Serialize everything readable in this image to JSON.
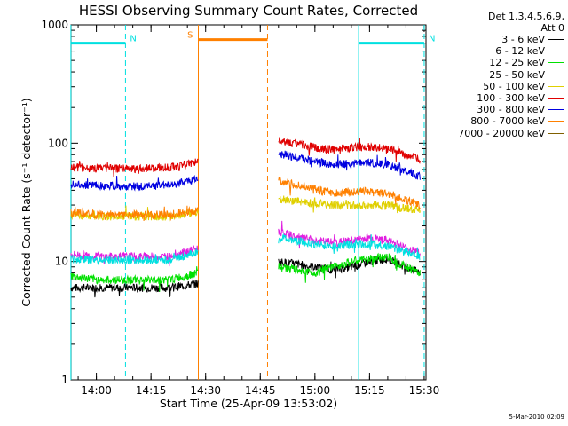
{
  "chart_data": {
    "type": "line",
    "title": "HESSI Observing Summary Count Rates, Corrected",
    "xlabel": "Start Time (25-Apr-09 13:53:02)",
    "ylabel": "Corrected Count Rate (s⁻¹ detector⁻¹)",
    "yscale": "log",
    "ylim": [
      1,
      1000
    ],
    "xlim": [
      "13:53:02",
      "15:30:30"
    ],
    "x_ticks": [
      "14:00",
      "14:15",
      "14:30",
      "14:45",
      "15:00",
      "15:15",
      "15:30"
    ],
    "y_ticks": [
      "1",
      "10",
      "100",
      "1000"
    ],
    "legend_header": [
      "Det 1,3,4,5,6,9,",
      "Att 0"
    ],
    "series": [
      {
        "name": "3 - 6 keV",
        "color": "#000000",
        "segments": [
          {
            "x": [
              "13:53",
              "14:00",
              "14:10",
              "14:20",
              "14:28"
            ],
            "y": [
              6,
              6,
              6,
              6,
              6.5
            ]
          },
          {
            "x": [
              "14:50",
              "14:55",
              "15:00",
              "15:05",
              "15:10",
              "15:15",
              "15:20",
              "15:25",
              "15:29"
            ],
            "y": [
              10,
              9.5,
              9,
              8.5,
              9,
              10,
              10.5,
              9,
              8
            ]
          }
        ]
      },
      {
        "name": "6 - 12 keV",
        "color": "#e020e0",
        "segments": [
          {
            "x": [
              "13:53",
              "14:00",
              "14:10",
              "14:20",
              "14:28"
            ],
            "y": [
              11.5,
              11,
              11,
              11,
              13
            ]
          },
          {
            "x": [
              "14:50",
              "14:55",
              "15:00",
              "15:05",
              "15:10",
              "15:15",
              "15:20",
              "15:25",
              "15:29"
            ],
            "y": [
              18,
              16,
              15,
              14.5,
              15,
              16,
              15,
              13,
              12
            ]
          }
        ]
      },
      {
        "name": "12 - 25 keV",
        "color": "#00e000",
        "segments": [
          {
            "x": [
              "13:53",
              "14:00",
              "14:10",
              "14:20",
              "14:28"
            ],
            "y": [
              7.5,
              7,
              7,
              7,
              8
            ]
          },
          {
            "x": [
              "14:50",
              "14:55",
              "15:00",
              "15:05",
              "15:10",
              "15:15",
              "15:20",
              "15:25",
              "15:29"
            ],
            "y": [
              9,
              8.5,
              8,
              9,
              10,
              10.5,
              11,
              9,
              8
            ]
          }
        ]
      },
      {
        "name": "25 - 50 keV",
        "color": "#00e0e0",
        "segments": [
          {
            "x": [
              "13:53",
              "14:00",
              "14:10",
              "14:20",
              "14:28"
            ],
            "y": [
              10.5,
              10.3,
              10.2,
              10.3,
              12
            ]
          },
          {
            "x": [
              "14:50",
              "14:55",
              "15:00",
              "15:05",
              "15:10",
              "15:15",
              "15:20",
              "15:25",
              "15:29"
            ],
            "y": [
              16,
              15,
              14,
              13.5,
              14,
              14,
              13.5,
              12,
              11
            ]
          }
        ]
      },
      {
        "name": "50 - 100 keV",
        "color": "#e0d000",
        "segments": [
          {
            "x": [
              "13:53",
              "14:00",
              "14:10",
              "14:20",
              "14:28"
            ],
            "y": [
              25,
              24,
              24,
              24,
              26
            ]
          },
          {
            "x": [
              "14:50",
              "14:55",
              "15:00",
              "15:05",
              "15:10",
              "15:15",
              "15:20",
              "15:25",
              "15:29"
            ],
            "y": [
              34,
              32,
              31,
              30,
              30,
              30,
              30,
              28,
              27
            ]
          }
        ]
      },
      {
        "name": "100 - 300 keV",
        "color": "#e00000",
        "segments": [
          {
            "x": [
              "13:53",
              "14:00",
              "14:10",
              "14:20",
              "14:28"
            ],
            "y": [
              63,
              61,
              61,
              62,
              70
            ]
          },
          {
            "x": [
              "14:50",
              "14:55",
              "15:00",
              "15:05",
              "15:10",
              "15:15",
              "15:20",
              "15:25",
              "15:29"
            ],
            "y": [
              105,
              98,
              92,
              88,
              92,
              93,
              90,
              80,
              72
            ]
          }
        ]
      },
      {
        "name": "300 - 800 keV",
        "color": "#0000e0",
        "segments": [
          {
            "x": [
              "13:53",
              "14:00",
              "14:10",
              "14:20",
              "14:28"
            ],
            "y": [
              45,
              44,
              43,
              44,
              50
            ]
          },
          {
            "x": [
              "14:50",
              "14:55",
              "15:00",
              "15:05",
              "15:10",
              "15:15",
              "15:20",
              "15:25",
              "15:29"
            ],
            "y": [
              82,
              76,
              70,
              66,
              68,
              68,
              66,
              58,
              52
            ]
          }
        ]
      },
      {
        "name": "800 - 7000 keV",
        "color": "#ff8000",
        "segments": [
          {
            "x": [
              "13:53",
              "14:00",
              "14:10",
              "14:20",
              "14:28"
            ],
            "y": [
              26,
              25,
              25,
              25,
              27
            ]
          },
          {
            "x": [
              "14:50",
              "14:55",
              "15:00",
              "15:05",
              "15:10",
              "15:15",
              "15:20",
              "15:25",
              "15:29"
            ],
            "y": [
              48,
              44,
              41,
              38,
              39,
              39,
              37,
              33,
              30
            ]
          }
        ]
      },
      {
        "name": "7000 - 20000 keV",
        "color": "#806000",
        "segments": []
      }
    ],
    "flags": {
      "night": {
        "letter": "N",
        "color": "#00e0e0",
        "intervals": [
          [
            "13:53",
            "14:08"
          ],
          [
            "15:12",
            "15:30"
          ]
        ],
        "level": 700
      },
      "saa": {
        "letter": "S",
        "color": "#ff8000",
        "intervals": [
          [
            "14:28",
            "14:47"
          ]
        ],
        "level": 750
      }
    },
    "footnote": "5-Mar-2010 02:09"
  }
}
